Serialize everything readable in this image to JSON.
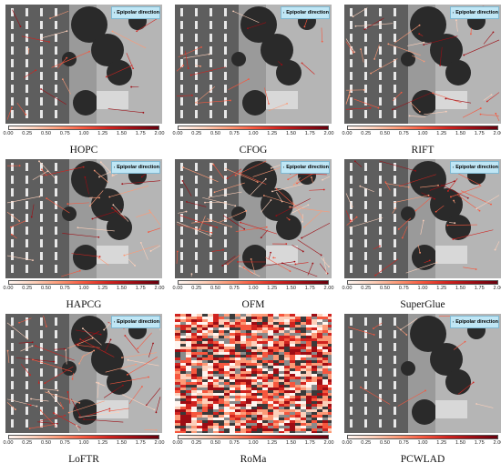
{
  "figure": {
    "badge_text": "Epipolar direction",
    "colorbar_ticks": [
      "0.00",
      "0.25",
      "0.50",
      "0.75",
      "1.00",
      "1.25",
      "1.50",
      "1.75",
      "2.00"
    ],
    "colorbar_colors": [
      "#fff5f0",
      "#fdd0bb",
      "#fc9a77",
      "#f6573e",
      "#d0231f",
      "#9d0d14",
      "#67000d"
    ],
    "panels": [
      {
        "method": "HOPC",
        "match_density": "sparse"
      },
      {
        "method": "CFOG",
        "match_density": "sparse"
      },
      {
        "method": "RIFT",
        "match_density": "medium"
      },
      {
        "method": "HAPCG",
        "match_density": "medium"
      },
      {
        "method": "OFM",
        "match_density": "dense"
      },
      {
        "method": "SuperGlue",
        "match_density": "medium"
      },
      {
        "method": "LoFTR",
        "match_density": "dense"
      },
      {
        "method": "RoMa",
        "match_density": "full-field",
        "has_badge": false
      },
      {
        "method": "PCWLAD",
        "match_density": "very sparse"
      }
    ]
  }
}
